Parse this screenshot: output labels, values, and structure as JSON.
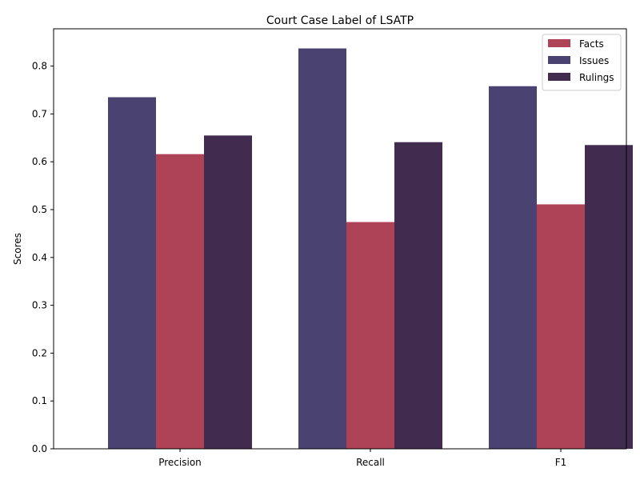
{
  "chart_data": {
    "type": "bar",
    "title": "Court Case Label of LSATP",
    "xlabel": "",
    "ylabel": "Scores",
    "categories": [
      "Precision",
      "Recall",
      "F1"
    ],
    "series": [
      {
        "name": "Issues",
        "color": "#4a4372",
        "values": [
          0.735,
          0.837,
          0.758
        ]
      },
      {
        "name": "Facts",
        "color": "#ae4256",
        "values": [
          0.616,
          0.474,
          0.511
        ]
      },
      {
        "name": "Rulings",
        "color": "#412c50",
        "values": [
          0.655,
          0.641,
          0.635
        ]
      }
    ],
    "legend_order": [
      "Facts",
      "Issues",
      "Rulings"
    ],
    "legend_position": "top-right",
    "ylim": [
      0,
      0.878
    ],
    "yticks": [
      "0.0",
      "0.1",
      "0.2",
      "0.3",
      "0.4",
      "0.5",
      "0.6",
      "0.7",
      "0.8"
    ],
    "grid": false
  }
}
